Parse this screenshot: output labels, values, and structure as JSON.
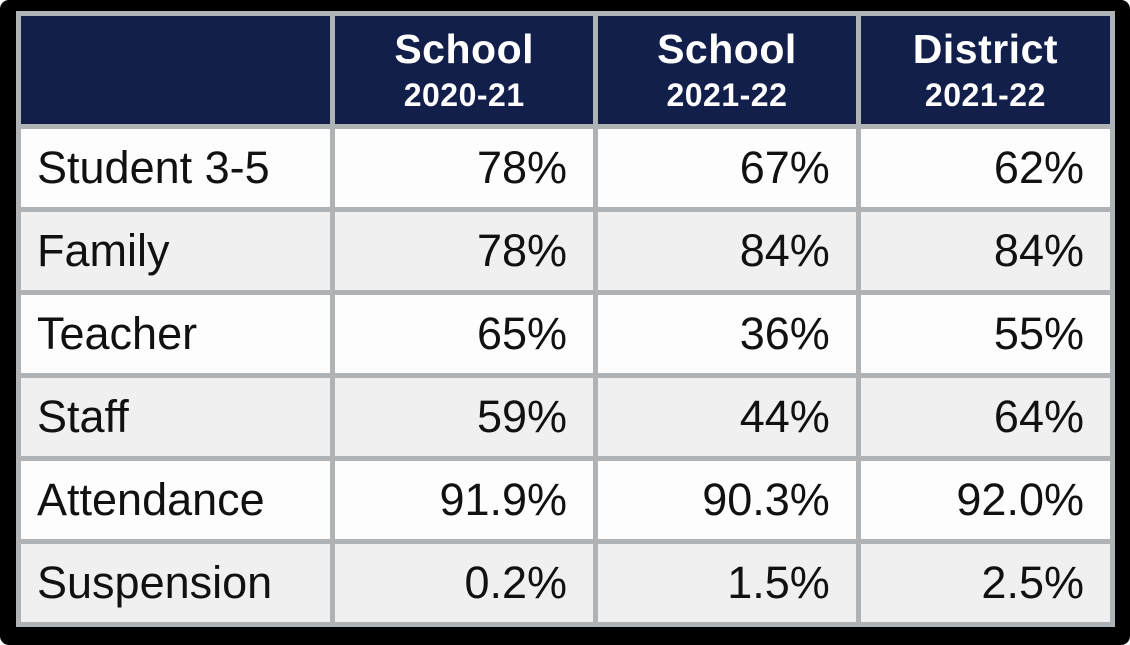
{
  "colors": {
    "frame": "#000000",
    "grid": "#b0b3b5",
    "header_bg": "#121f4a",
    "header_text": "#ffffff",
    "row_bg": "#fdfdfe",
    "row_alt_bg": "#f0f0f0",
    "body_text": "#111111"
  },
  "chart_data": {
    "type": "table",
    "title": "",
    "columns": [
      {
        "title": "",
        "subtitle": ""
      },
      {
        "title": "School",
        "subtitle": "2020-21"
      },
      {
        "title": "School",
        "subtitle": "2021-22"
      },
      {
        "title": "District",
        "subtitle": "2021-22"
      }
    ],
    "rows": [
      {
        "label": "Student 3-5",
        "values": [
          "78%",
          "67%",
          "62%"
        ]
      },
      {
        "label": "Family",
        "values": [
          "78%",
          "84%",
          "84%"
        ]
      },
      {
        "label": "Teacher",
        "values": [
          "65%",
          "36%",
          "55%"
        ]
      },
      {
        "label": "Staff",
        "values": [
          "59%",
          "44%",
          "64%"
        ]
      },
      {
        "label": "Attendance",
        "values": [
          "91.9%",
          "90.3%",
          "92.0%"
        ]
      },
      {
        "label": "Suspension",
        "values": [
          "0.2%",
          "1.5%",
          "2.5%"
        ]
      }
    ]
  }
}
